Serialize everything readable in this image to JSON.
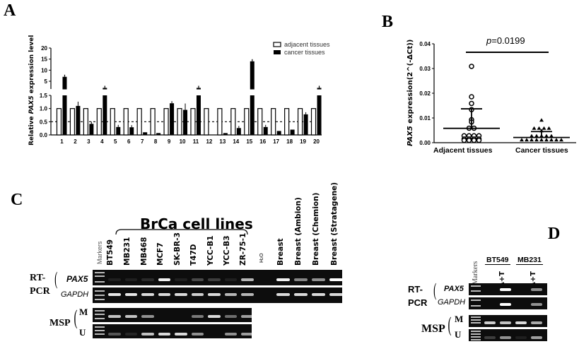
{
  "panels": {
    "A": {
      "letter": "A"
    },
    "B": {
      "letter": "B"
    },
    "C": {
      "letter": "C"
    },
    "D": {
      "letter": "D"
    }
  },
  "chart_data": [
    {
      "panel": "A",
      "type": "bar",
      "title": "",
      "xlabel": "",
      "ylabel": "Relative PAX5 expression level",
      "y_axis_break": true,
      "ylim_lower": [
        0,
        1.5
      ],
      "ylim_upper": [
        1.5,
        20
      ],
      "yticks_lower": [
        "0.0",
        "0.5",
        "1.0",
        "1.5"
      ],
      "yticks_upper": [
        "5",
        "10",
        "15",
        "20"
      ],
      "reference_line": 0.5,
      "categories": [
        "1",
        "2",
        "3",
        "4",
        "5",
        "6",
        "7",
        "8",
        "9",
        "10",
        "11",
        "12",
        "13",
        "14",
        "15",
        "16",
        "17",
        "18",
        "19",
        "20"
      ],
      "legend": [
        "adjacent tissues",
        "cancer tissues"
      ],
      "legend_position": "top-right",
      "series": [
        {
          "name": "adjacent tissues",
          "values": [
            1,
            1,
            1,
            1,
            1,
            1,
            1,
            1,
            1,
            1,
            1,
            1,
            1,
            1,
            1,
            1,
            1,
            1,
            1,
            1
          ],
          "fill": "#ffffff"
        },
        {
          "name": "cancer tissues",
          "values": [
            7,
            1.1,
            0.42,
            2,
            0.3,
            0.29,
            0.1,
            0.07,
            1.2,
            0.95,
            2,
            0.01,
            0.07,
            0.26,
            14,
            0.3,
            0.15,
            0.2,
            0.78,
            2
          ],
          "fill": "#000000"
        }
      ]
    },
    {
      "panel": "B",
      "type": "scatter",
      "title": "",
      "ylabel": "PAX5 expression(2^(-ΔCt))",
      "xlabel": "",
      "ylim": [
        0,
        0.04
      ],
      "yticks": [
        "0.00",
        "0.01",
        "0.02",
        "0.03",
        "0.04"
      ],
      "categories": [
        "Adjacent tissues",
        "Cancer tissues"
      ],
      "annotation": "p=0.0199",
      "series": [
        {
          "name": "Adjacent tissues",
          "marker": "open-circle",
          "mean": 0.0058,
          "sd_upper": 0.0137,
          "values": [
            0.0303,
            0.018,
            0.0153,
            0.0128,
            0.0087,
            0.0078,
            0.0053,
            0.0053,
            0.0022,
            0.0022,
            0.0022,
            0.0022,
            0.0009,
            0.0009,
            0.0009,
            0.0009,
            0.0004,
            0.0004,
            0.0004,
            0.0004
          ]
        },
        {
          "name": "Cancer tissues",
          "marker": "filled-triangle",
          "mean": 0.0021,
          "sd_upper": 0.0045,
          "values": [
            0.0085,
            0.0052,
            0.0052,
            0.0052,
            0.0052,
            0.0042,
            0.0021,
            0.0021,
            0.0021,
            0.0021,
            0.0021,
            0.0005,
            0.0005,
            0.0005,
            0.0005,
            0.0005,
            0.0005,
            0.0005,
            0.0005,
            0.0005
          ]
        }
      ]
    }
  ],
  "panelA": {
    "ylabel_prefix": "Relative ",
    "ylabel_gene": "PAX5",
    "ylabel_suffix": " expression level",
    "legend": {
      "adjacent": "adjacent tissues",
      "cancer": "cancer tissues"
    }
  },
  "panelB": {
    "ylabel_gene": "PAX5",
    "ylabel_suffix": " expression(2^(-ΔCt))",
    "p_prefix": "p",
    "p_value": "=0.0199",
    "x_labels": [
      "Adjacent tissues",
      "Cancer tissues"
    ]
  },
  "panelC": {
    "group_title": "BrCa cell lines",
    "markers_label": "Markers",
    "lanes": [
      "BT549",
      "MB231",
      "MB468",
      "MCF7",
      "SK-BR-3",
      "T47D",
      "YCC-B1",
      "YCC-B3",
      "ZR-75-1",
      "H₂O",
      "Breast",
      "Breast (Ambion)",
      "Breast (Chemion)",
      "Breast (Stratagene)"
    ],
    "rt_pcr_label_1": "RT-",
    "rt_pcr_label_2": "PCR",
    "msp_label": "MSP",
    "pax5": "PAX5",
    "gapdh": "GAPDH",
    "m": "M",
    "u": "U",
    "band_intensity": {
      "PAX5": [
        0.05,
        0.08,
        0.12,
        0.95,
        0.05,
        0.25,
        0.2,
        0.05,
        0.7,
        0,
        0.95,
        0.5,
        0.55,
        1.0
      ],
      "GAPDH": [
        0.9,
        0.9,
        0.85,
        0.85,
        0.85,
        0.8,
        0.85,
        0.7,
        0.7,
        0,
        0.85,
        0.85,
        0.85,
        0.85
      ],
      "M": [
        0.75,
        0.75,
        0.55,
        0,
        0,
        0.45,
        0.85,
        0.4,
        0.6
      ],
      "U": [
        0.3,
        0.1,
        0.75,
        0.85,
        0.85,
        0.55,
        0,
        0.55,
        0.6
      ]
    }
  },
  "panelD": {
    "markers_label": "Markers",
    "groups": [
      "BT549",
      "MB231"
    ],
    "lanes": [
      "",
      "A+T",
      "",
      "A+T"
    ],
    "rt_pcr_label_1": "RT-",
    "rt_pcr_label_2": "PCR",
    "msp_label": "MSP",
    "pax5": "PAX5",
    "gapdh": "GAPDH",
    "m": "M",
    "u": "U",
    "band_intensity": {
      "PAX5": [
        0,
        1.0,
        0,
        0.55
      ],
      "GAPDH": [
        0,
        1.0,
        0,
        0.55
      ],
      "M": [
        0.8,
        0.75,
        0.85,
        0.65
      ],
      "U": [
        0.2,
        0.55,
        0.05,
        0.6
      ]
    }
  }
}
